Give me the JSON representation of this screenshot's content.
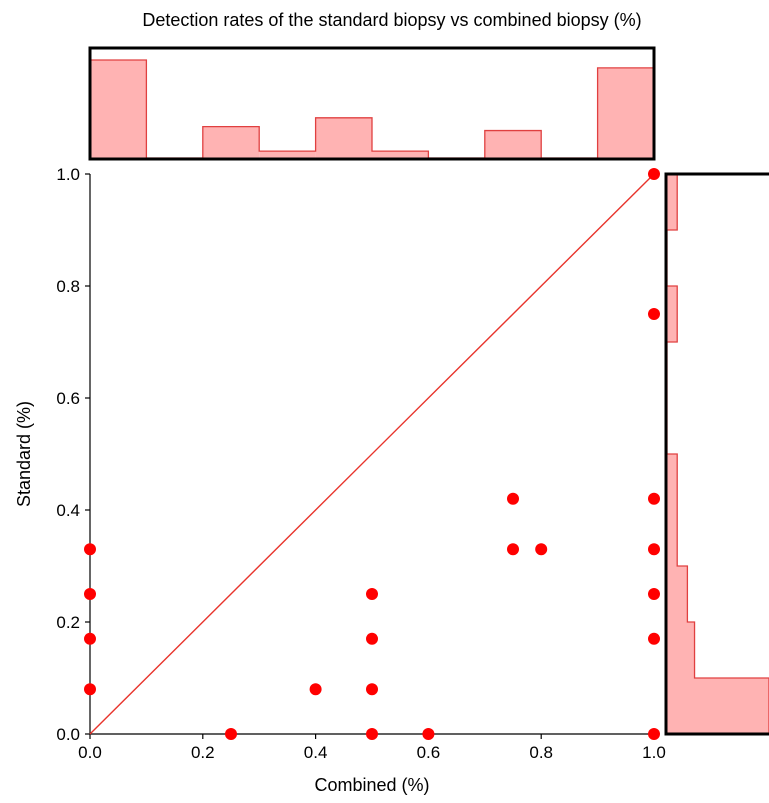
{
  "chart_data": {
    "type": "scatter",
    "title": "Detection rates of the standard biopsy vs combined biopsy (%)",
    "xlabel": "Combined (%)",
    "ylabel": "Standard (%)",
    "xlim": [
      0,
      1
    ],
    "ylim": [
      0,
      1
    ],
    "x_ticks": [
      "0.0",
      "0.2",
      "0.4",
      "0.6",
      "0.8",
      "1.0"
    ],
    "y_ticks": [
      "0.0",
      "0.2",
      "0.4",
      "0.6",
      "0.8",
      "1.0"
    ],
    "grid": false,
    "points": [
      {
        "x": 0.0,
        "y": 0.33
      },
      {
        "x": 0.0,
        "y": 0.25
      },
      {
        "x": 0.0,
        "y": 0.17
      },
      {
        "x": 0.0,
        "y": 0.08
      },
      {
        "x": 0.25,
        "y": 0.0
      },
      {
        "x": 0.4,
        "y": 0.08
      },
      {
        "x": 0.5,
        "y": 0.25
      },
      {
        "x": 0.5,
        "y": 0.17
      },
      {
        "x": 0.5,
        "y": 0.08
      },
      {
        "x": 0.5,
        "y": 0.0
      },
      {
        "x": 0.6,
        "y": 0.0
      },
      {
        "x": 0.75,
        "y": 0.42
      },
      {
        "x": 0.75,
        "y": 0.33
      },
      {
        "x": 0.8,
        "y": 0.33
      },
      {
        "x": 1.0,
        "y": 1.0
      },
      {
        "x": 1.0,
        "y": 0.75
      },
      {
        "x": 1.0,
        "y": 0.42
      },
      {
        "x": 1.0,
        "y": 0.33
      },
      {
        "x": 1.0,
        "y": 0.25
      },
      {
        "x": 1.0,
        "y": 0.17
      },
      {
        "x": 1.0,
        "y": 0.0
      }
    ],
    "reference_line": {
      "from": [
        0,
        0
      ],
      "to": [
        1,
        1
      ]
    },
    "top_histogram": {
      "bins": [
        0,
        0.1,
        0.2,
        0.3,
        0.4,
        0.5,
        0.6,
        0.7,
        0.8,
        0.9,
        1.0
      ],
      "heights": [
        1.0,
        0,
        0.32,
        0.07,
        0.41,
        0.07,
        0,
        0.28,
        0,
        0.92
      ]
    },
    "right_histogram": {
      "bins": [
        0,
        0.1,
        0.2,
        0.3,
        0.4,
        0.5,
        0.6,
        0.7,
        0.8,
        0.9,
        1.0
      ],
      "heights": [
        1.0,
        0.27,
        0.2,
        0.1,
        0.1,
        0,
        0,
        0.1,
        0,
        0.1
      ]
    },
    "colors": {
      "points": "#ff0000",
      "reference_line": "#e8342c",
      "hist_fill": "#ffb3b3",
      "hist_edge": "#e04040",
      "axis": "#000000"
    }
  }
}
